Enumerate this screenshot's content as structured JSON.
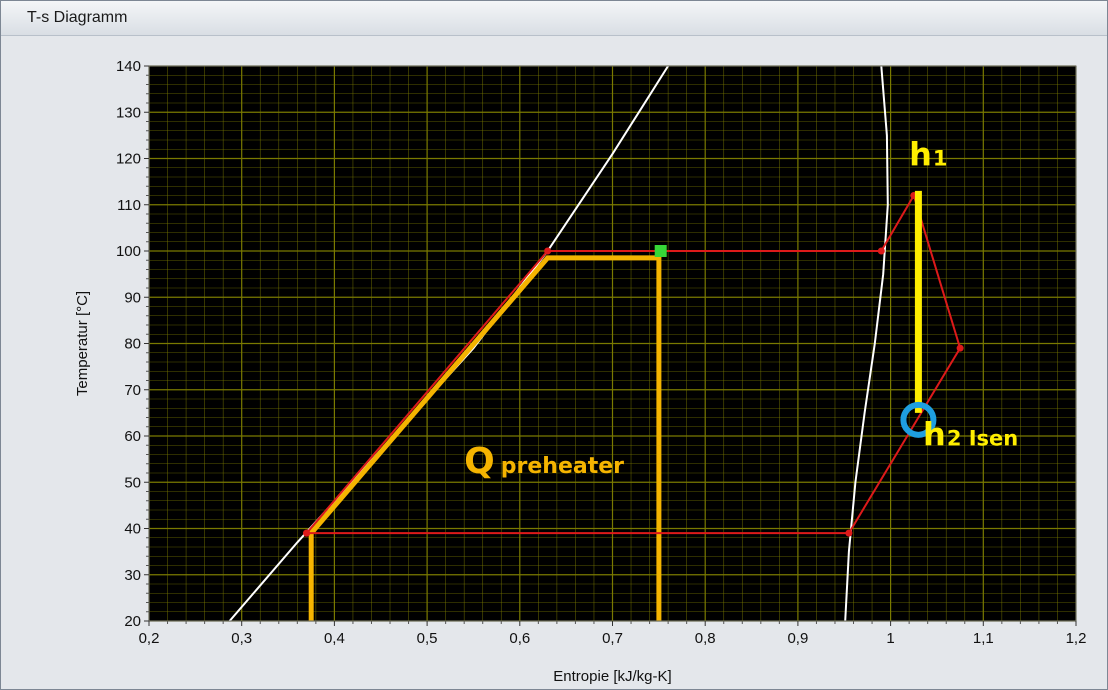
{
  "window": {
    "title": "T-s Diagramm"
  },
  "colors": {
    "plot_bg": "#000000",
    "grid": "#7a7a00",
    "saturation_curve": "#ffffff",
    "cycle": "#dd1a1a",
    "preheater": "#f5b400",
    "h1_line": "#ffee00",
    "circle": "#1e9fe0",
    "marker": "#37d637"
  },
  "chart_data": {
    "type": "line",
    "xlabel": "Entropie [kJ/kg-K]",
    "ylabel": "Temperatur [°C]",
    "xlim": [
      0.2,
      1.2
    ],
    "ylim": [
      20,
      140
    ],
    "x_ticks": [
      "0,2",
      "0,3",
      "0,4",
      "0,5",
      "0,6",
      "0,7",
      "0,8",
      "0,9",
      "1",
      "1,1",
      "1,2"
    ],
    "y_ticks": [
      "20",
      "30",
      "40",
      "50",
      "60",
      "70",
      "80",
      "90",
      "100",
      "110",
      "120",
      "130",
      "140"
    ],
    "grid": true,
    "series": [
      {
        "role": "saturated-liquid",
        "x": [
          0.287,
          0.36,
          0.45,
          0.55,
          0.63,
          0.7,
          0.76
        ],
        "y": [
          20,
          37,
          57,
          79,
          100,
          121,
          140
        ]
      },
      {
        "role": "saturated-vapor",
        "x": [
          0.951,
          0.955,
          0.962,
          0.972,
          0.983,
          0.992,
          0.997,
          0.996,
          0.99
        ],
        "y": [
          20,
          35,
          50,
          65,
          80,
          95,
          110,
          125,
          140
        ]
      },
      {
        "role": "cycle",
        "x": [
          0.37,
          0.63,
          0.99,
          1.025,
          1.075,
          0.955,
          0.37
        ],
        "y": [
          39,
          100,
          100,
          112,
          79,
          39,
          39
        ]
      },
      {
        "role": "preheater",
        "x": [
          0.375,
          0.375,
          0.63,
          0.75,
          0.75
        ],
        "y": [
          20,
          39,
          98.5,
          98.5,
          20
        ]
      },
      {
        "role": "h1-line",
        "x": [
          1.03,
          1.03
        ],
        "y": [
          113,
          65
        ]
      }
    ],
    "markers": [
      {
        "role": "green-square",
        "x": 0.752,
        "y": 100
      },
      {
        "role": "circle",
        "x": 1.03,
        "y": 63.5
      }
    ],
    "annotations": [
      {
        "label": "h",
        "sub": "1",
        "x": 1.02,
        "y": 118.5,
        "color": "#ffee00"
      },
      {
        "label": "h",
        "sub": "2 Isen",
        "x": 1.035,
        "y": 58,
        "color": "#ffee00"
      },
      {
        "label": "Q",
        "sub": "preheater",
        "x": 0.54,
        "y": 52,
        "color": "#f5b400"
      }
    ]
  }
}
